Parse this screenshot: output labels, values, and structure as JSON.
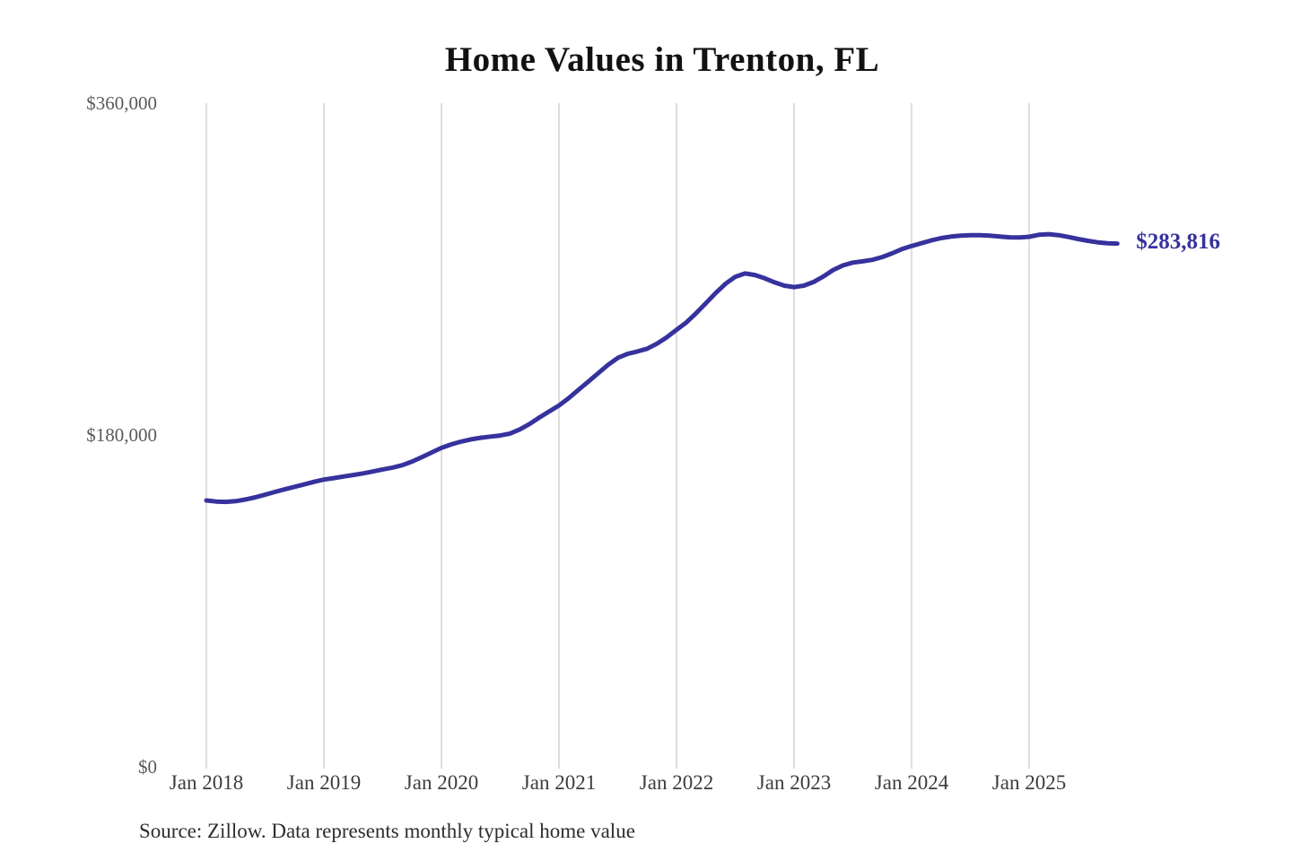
{
  "chart": {
    "title": "Home Values in Trenton, FL",
    "end_label": "$283,816",
    "source": "Source: Zillow. Data represents monthly typical home value"
  },
  "chart_data": {
    "type": "line",
    "title": "Home Values in Trenton, FL",
    "xlabel": "",
    "ylabel": "",
    "ylim": [
      0,
      360000
    ],
    "y_tick_values": [
      0,
      180000,
      360000
    ],
    "y_tick_labels": [
      "$0",
      "$180,000",
      "$360,000"
    ],
    "x_tick_labels": [
      "Jan 2018",
      "Jan 2019",
      "Jan 2020",
      "Jan 2021",
      "Jan 2022",
      "Jan 2023",
      "Jan 2024",
      "Jan 2025"
    ],
    "x_months_per_tick": 12,
    "x_first_point": "Jan 2018",
    "x_last_point": "Oct 2025",
    "grid": "vertical-only",
    "legend_position": "none",
    "line_color": "#36329d",
    "gridline_color": "#cccccc",
    "final_value": 283816,
    "final_value_label": "$283,816",
    "series": [
      {
        "name": "Monthly typical home value",
        "values": [
          144500,
          143900,
          143700,
          144100,
          145000,
          146200,
          147600,
          149100,
          150500,
          151900,
          153200,
          154600,
          155800,
          156600,
          157500,
          158300,
          159200,
          160200,
          161300,
          162300,
          163600,
          165600,
          168000,
          170500,
          173000,
          174900,
          176400,
          177600,
          178500,
          179100,
          179700,
          180800,
          183000,
          186000,
          189500,
          192800,
          196000,
          200000,
          204500,
          209000,
          213500,
          218000,
          221800,
          224000,
          225300,
          226800,
          229500,
          233000,
          237000,
          241000,
          246000,
          251500,
          257000,
          262000,
          265800,
          267600,
          266800,
          265000,
          262800,
          261000,
          260200,
          261000,
          263000,
          266000,
          269500,
          272000,
          273500,
          274200,
          275000,
          276500,
          278500,
          280800,
          282500,
          284000,
          285500,
          286800,
          287600,
          288100,
          288400,
          288400,
          288100,
          287600,
          287200,
          287100,
          287500,
          288600,
          288900,
          288400,
          287400,
          286300,
          285300,
          284500,
          284000,
          283816
        ]
      }
    ]
  }
}
